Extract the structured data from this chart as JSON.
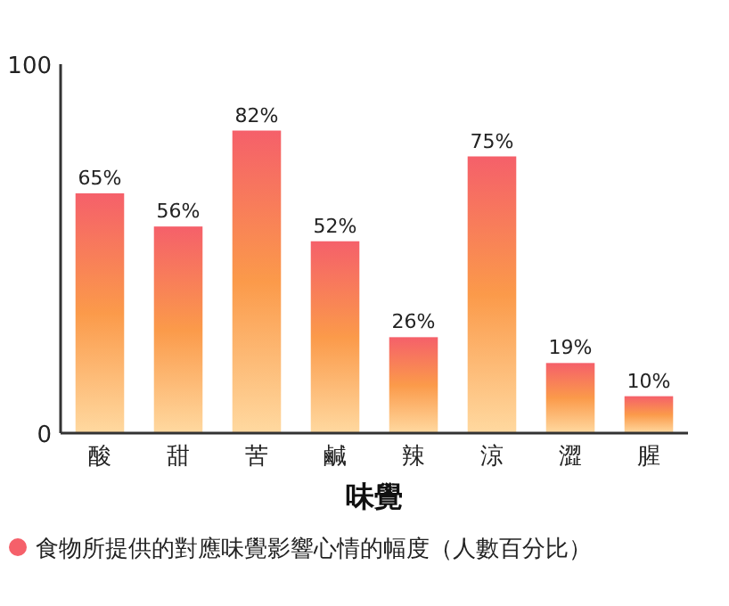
{
  "chart_data": {
    "type": "bar",
    "xlabel": "味覺",
    "categories": [
      "酸",
      "甜",
      "苦",
      "鹹",
      "辣",
      "涼",
      "澀",
      "腥"
    ],
    "series": [
      {
        "name": "食物所提供的對應味覺影響心情的幅度（人數百分比）",
        "color": "#f5606a",
        "values": [
          65,
          56,
          82,
          52,
          26,
          75,
          19,
          10
        ],
        "value_labels": [
          "65%",
          "56%",
          "82%",
          "52%",
          "26%",
          "75%",
          "19%",
          "10%"
        ]
      }
    ],
    "ylim": [
      0,
      100
    ],
    "yticks": [
      0,
      100
    ],
    "grid": false,
    "legend": "bottom"
  }
}
